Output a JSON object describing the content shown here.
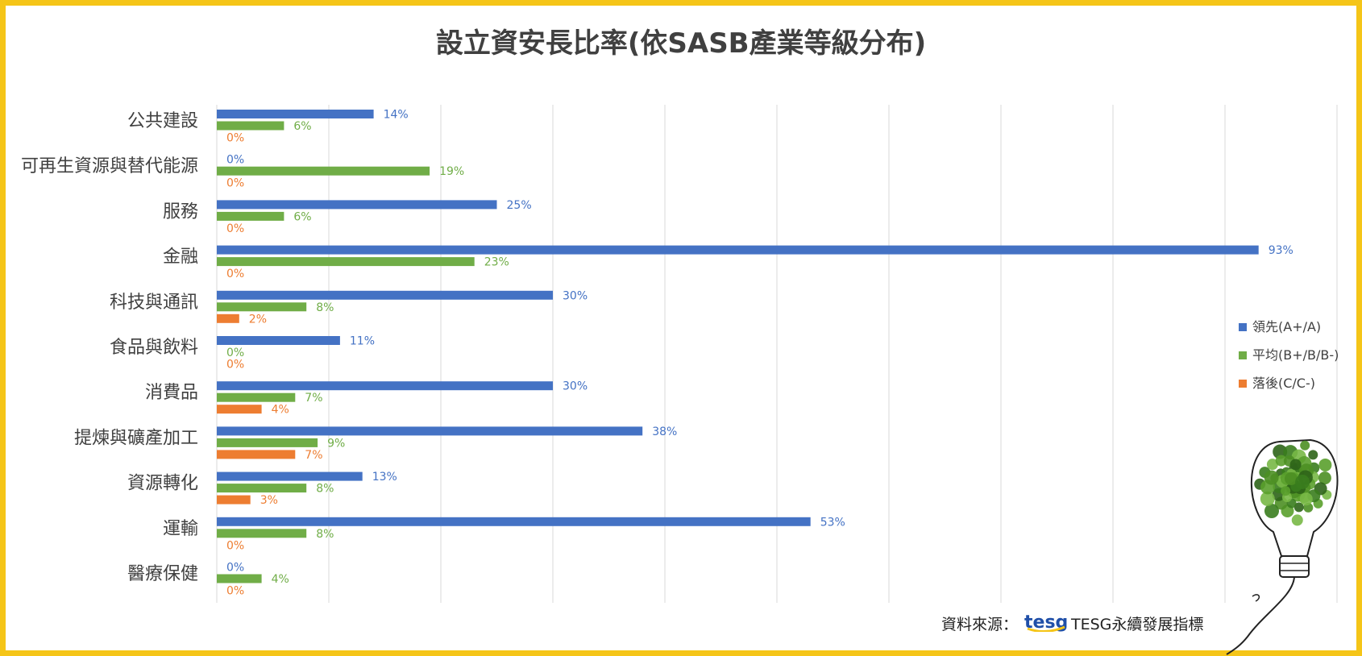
{
  "chart_data": {
    "type": "bar",
    "orientation": "horizontal",
    "title": "設立資安長比率(依SASB產業等級分布)",
    "xlabel": "",
    "ylabel": "",
    "xlim": [
      0,
      100
    ],
    "grid": true,
    "legend_position": "right",
    "categories": [
      "公共建設",
      "可再生資源與替代能源",
      "服務",
      "金融",
      "科技與通訊",
      "食品與飲料",
      "消費品",
      "提煉與礦產加工",
      "資源轉化",
      "運輸",
      "醫療保健"
    ],
    "series": [
      {
        "name": "領先(A+/A)",
        "color": "#4472c4",
        "values": [
          14,
          0,
          25,
          93,
          30,
          11,
          30,
          38,
          13,
          53,
          0
        ],
        "labels": [
          "14%",
          "0%",
          "25%",
          "93%",
          "30%",
          "11%",
          "30%",
          "38%",
          "13%",
          "53%",
          "0%"
        ]
      },
      {
        "name": "平均(B+/B/B-)",
        "color": "#70ad47",
        "values": [
          6,
          19,
          6,
          23,
          8,
          0,
          7,
          9,
          8,
          8,
          4
        ],
        "labels": [
          "6%",
          "19%",
          "6%",
          "23%",
          "8%",
          "0%",
          "7%",
          "9%",
          "8%",
          "8%",
          "4%"
        ]
      },
      {
        "name": "落後(C/C-)",
        "color": "#ed7d31",
        "values": [
          0,
          0,
          0,
          0,
          2,
          0,
          4,
          7,
          3,
          0,
          0
        ],
        "labels": [
          "0%",
          "0%",
          "0%",
          "0%",
          "2%",
          "0%",
          "4%",
          "7%",
          "3%",
          "0%",
          "0%"
        ]
      }
    ]
  },
  "source": {
    "label": "資料來源：",
    "logo_text": "tesg",
    "brand": "TESG永續發展指標"
  },
  "colors": {
    "frame": "#f5c518",
    "grid": "#d9d9d9",
    "text": "#404040"
  }
}
